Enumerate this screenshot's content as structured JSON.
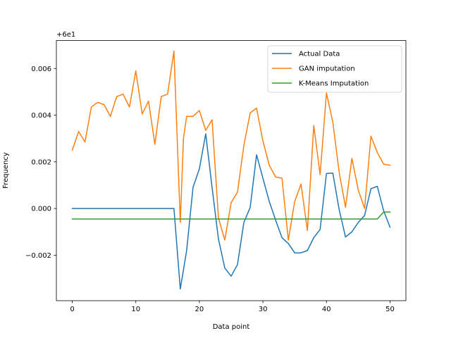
{
  "chart_data": {
    "type": "line",
    "title": "",
    "xlabel": "Data point",
    "ylabel": "Frequency",
    "y_offset_label": "+6e1",
    "xlim": [
      -2.5,
      52.5
    ],
    "ylim": [
      -0.00395,
      0.0072
    ],
    "x_ticks": [
      0,
      10,
      20,
      30,
      40,
      50
    ],
    "y_ticks": [
      -0.002,
      0.0,
      0.002,
      0.004,
      0.006
    ],
    "y_tick_labels": [
      "−0.002",
      "0.000",
      "0.002",
      "0.004",
      "0.006"
    ],
    "legend_position": "top-right",
    "series": [
      {
        "name": "Actual Data",
        "color": "#1f77b4",
        "x": [
          0,
          1,
          2,
          3,
          4,
          5,
          6,
          7,
          8,
          9,
          10,
          11,
          12,
          13,
          14,
          15,
          16,
          17,
          18,
          19,
          20,
          21,
          22,
          23,
          24,
          25,
          26,
          27,
          28,
          29,
          30,
          31,
          32,
          33,
          34,
          35,
          36,
          37,
          38,
          39,
          40,
          41,
          42,
          43,
          44,
          45,
          46,
          47,
          48,
          49,
          50
        ],
        "values": [
          0,
          0,
          0,
          0,
          0,
          0,
          0,
          0,
          0,
          0,
          0,
          0,
          0,
          0,
          0,
          0,
          0,
          -0.00345,
          -0.0018,
          0.0009,
          0.0017,
          0.0032,
          0.0009,
          -0.0013,
          -0.00255,
          -0.0029,
          -0.0024,
          -0.0006,
          5e-05,
          0.0023,
          0.0013,
          0.0003,
          -0.0005,
          -0.00125,
          -0.0015,
          -0.0019,
          -0.0019,
          -0.0018,
          -0.00125,
          -0.0009,
          0.0015,
          0.00152,
          -5e-05,
          -0.00122,
          -0.001,
          -0.0006,
          -0.0003,
          0.00085,
          0.00095,
          -0.0001,
          -0.0008
        ]
      },
      {
        "name": "GAN imputation",
        "color": "#ff7f0e",
        "x": [
          0,
          1,
          2,
          3,
          4,
          5,
          6,
          7,
          8,
          9,
          10,
          11,
          12,
          13,
          14,
          15,
          16,
          17,
          17.5,
          18,
          19,
          20,
          21,
          22,
          23,
          24,
          25,
          26,
          27,
          28,
          29,
          30,
          31,
          32,
          33,
          34,
          35,
          36,
          37,
          38,
          39,
          40,
          41,
          42,
          43,
          44,
          45,
          46,
          47,
          48,
          49,
          50
        ],
        "values": [
          0.0025,
          0.0033,
          0.00285,
          0.00435,
          0.00455,
          0.00445,
          0.00395,
          0.0048,
          0.0049,
          0.00435,
          0.0059,
          0.00405,
          0.0046,
          0.00275,
          0.0048,
          0.0049,
          0.00675,
          -0.0006,
          0.003,
          0.00395,
          0.00395,
          0.0042,
          0.00335,
          0.0038,
          -0.0004,
          -0.00135,
          0.00025,
          0.0007,
          0.0027,
          0.0041,
          0.0043,
          0.0029,
          0.00185,
          0.00135,
          0.0013,
          -0.00135,
          0.0003,
          0.00105,
          -0.00095,
          0.00355,
          0.00145,
          0.00495,
          0.0037,
          0.00155,
          5e-05,
          0.00215,
          0.0008,
          0.0,
          0.0031,
          0.0024,
          0.0019,
          0.00185
        ]
      },
      {
        "name": "K-Means Imputation",
        "color": "#2ca02c",
        "x": [
          0,
          48,
          49,
          50
        ],
        "values": [
          -0.00045,
          -0.00045,
          -0.00015,
          -0.00015
        ]
      }
    ]
  }
}
